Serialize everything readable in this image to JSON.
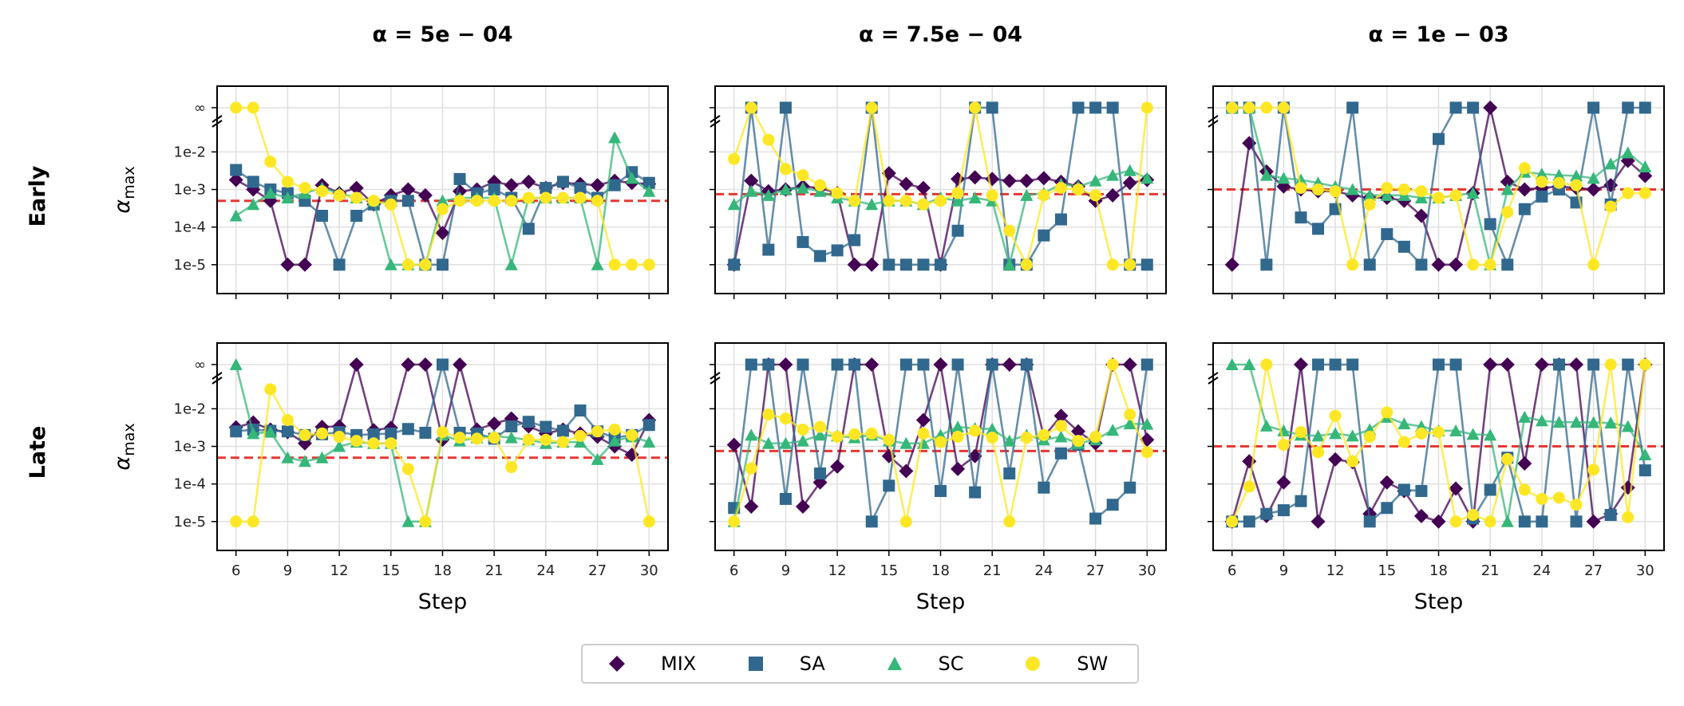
{
  "figure": {
    "row_labels": [
      "Early",
      "Late"
    ],
    "legend": [
      {
        "name": "MIX",
        "color": "#440154",
        "marker": "diamond-icon"
      },
      {
        "name": "SA",
        "color": "#31688e",
        "marker": "square-icon"
      },
      {
        "name": "SC",
        "color": "#35b779",
        "marker": "triangle-icon"
      },
      {
        "name": "SW",
        "color": "#fde725",
        "marker": "circle-icon"
      }
    ]
  },
  "chart_data": [
    {
      "type": "line",
      "row": "Early",
      "title": "α = 5e − 04",
      "threshold": 0.0005,
      "xlabel": "",
      "ylabel": "α_max",
      "x_ticks": [
        6,
        9,
        12,
        15,
        18,
        21,
        24,
        27,
        30
      ],
      "y_ticks": [
        "1e-5",
        "1e-4",
        "1e-3",
        "1e-2",
        "∞"
      ],
      "x": [
        6,
        7,
        8,
        9,
        10,
        11,
        12,
        13,
        14,
        15,
        16,
        17,
        18,
        19,
        20,
        21,
        22,
        23,
        24,
        25,
        26,
        27,
        28,
        29,
        30
      ],
      "series": [
        {
          "name": "MIX",
          "values": [
            "1.8e-3",
            "1e-3",
            "5e-4",
            "1e-5",
            "1e-5",
            "1.3e-3",
            "8e-4",
            "1.1e-3",
            "4e-4",
            "7e-4",
            "1e-3",
            "7e-4",
            "7e-5",
            "9e-4",
            "1e-3",
            "1.6e-3",
            "1.3e-3",
            "1.6e-3",
            "1.1e-3",
            "1.5e-3",
            "1.4e-3",
            "1.3e-3",
            "1.7e-3",
            "1.5e-3",
            "1.4e-3"
          ]
        },
        {
          "name": "SA",
          "values": [
            "3.3e-3",
            "1.6e-3",
            "1e-3",
            "8e-4",
            "5e-4",
            "2e-4",
            "1e-5",
            "2e-4",
            "4e-4",
            "5e-4",
            "5e-4",
            "1e-5",
            "1e-5",
            "1.9e-3",
            "8e-4",
            "1e-3",
            "6e-4",
            "9e-5",
            "1.1e-3",
            "1.6e-3",
            "1.1e-3",
            "6e-4",
            "1.3e-3",
            "2.9e-3",
            "1.5e-3"
          ]
        },
        {
          "name": "SC",
          "values": [
            "2e-4",
            "4e-4",
            "8e-4",
            "6e-4",
            "8e-4",
            "1.1e-3",
            "8e-4",
            "6e-4",
            "5e-4",
            "1e-5",
            "1e-5",
            "1e-5",
            "5e-4",
            "6e-4",
            "6e-4",
            "6e-4",
            "1e-5",
            "6e-4",
            "6e-4",
            "6e-4",
            "6e-4",
            "1e-5",
            "2.4e-2",
            "2e-3",
            "9e-4"
          ]
        },
        {
          "name": "SW",
          "values": [
            "inf",
            "inf",
            "5.5e-3",
            "1.6e-3",
            "1.1e-3",
            "9e-4",
            "7e-4",
            "6e-4",
            "5e-4",
            "4e-4",
            "1e-5",
            "1e-5",
            "3e-4",
            "5e-4",
            "5e-4",
            "5e-4",
            "5e-4",
            "6e-4",
            "6e-4",
            "6e-4",
            "6e-4",
            "5e-4",
            "1e-5",
            "1e-5",
            "1e-5"
          ]
        }
      ]
    },
    {
      "type": "line",
      "row": "Early",
      "title": "α = 7.5e − 04",
      "threshold": 0.00075,
      "xlabel": "",
      "ylabel": "",
      "x_ticks": [
        6,
        9,
        12,
        15,
        18,
        21,
        24,
        27,
        30
      ],
      "x": [
        6,
        7,
        8,
        9,
        10,
        11,
        12,
        13,
        14,
        15,
        16,
        17,
        18,
        19,
        20,
        21,
        22,
        23,
        24,
        25,
        26,
        27,
        28,
        29,
        30
      ],
      "series": [
        {
          "name": "MIX",
          "values": [
            "1e-5",
            "1.7e-3",
            "9e-4",
            "1e-3",
            "1.2e-3",
            "1.1e-3",
            "8e-4",
            "1e-5",
            "1e-5",
            "2.7e-3",
            "1.4e-3",
            "1.1e-3",
            "1e-5",
            "1.9e-3",
            "2.1e-3",
            "1.9e-3",
            "1.7e-3",
            "1.7e-3",
            "2e-3",
            "1.6e-3",
            "1.2e-3",
            "5e-4",
            "7e-4",
            "1.5e-3",
            "1.8e-3"
          ]
        },
        {
          "name": "SA",
          "values": [
            "1e-5",
            "inf",
            "2.5e-5",
            "inf",
            "4e-5",
            "1.7e-5",
            "2.4e-5",
            "4.5e-5",
            "inf",
            "1e-5",
            "1e-5",
            "1e-5",
            "1e-5",
            "8e-5",
            "inf",
            "inf",
            "1e-5",
            "1e-5",
            "6e-5",
            "1.6e-4",
            "inf",
            "inf",
            "inf",
            "1e-5",
            "1e-5"
          ]
        },
        {
          "name": "SC",
          "values": [
            "4e-4",
            "9e-4",
            "7e-4",
            "1e-3",
            "1.1e-3",
            "9e-4",
            "6e-4",
            "5e-4",
            "4e-4",
            "5e-4",
            "5e-4",
            "4e-4",
            "6e-4",
            "5e-4",
            "6e-4",
            "5e-4",
            "1e-5",
            "7e-4",
            "8e-4",
            "1.4e-3",
            "1.2e-3",
            "1.7e-3",
            "2.4e-3",
            "3.2e-3",
            "2e-3"
          ]
        },
        {
          "name": "SW",
          "values": [
            "6.5e-3",
            "inf",
            "2.1e-2",
            "3.5e-3",
            "2.4e-3",
            "1.3e-3",
            "8e-4",
            "5e-4",
            "inf",
            "5e-4",
            "5e-4",
            "4e-4",
            "5e-4",
            "8e-4",
            "inf",
            "7e-4",
            "8e-5",
            "1e-5",
            "7e-4",
            "1.1e-3",
            "1e-3",
            "7e-4",
            "1e-5",
            "1e-5",
            "inf"
          ]
        }
      ]
    },
    {
      "type": "line",
      "row": "Early",
      "title": "α = 1e − 03",
      "threshold": 0.001,
      "xlabel": "",
      "ylabel": "",
      "x_ticks": [
        6,
        9,
        12,
        15,
        18,
        21,
        24,
        27,
        30
      ],
      "x": [
        6,
        7,
        8,
        9,
        10,
        11,
        12,
        13,
        14,
        15,
        16,
        17,
        18,
        19,
        20,
        21,
        22,
        23,
        24,
        25,
        26,
        27,
        28,
        29,
        30
      ],
      "series": [
        {
          "name": "MIX",
          "values": [
            "1e-5",
            "1.7e-2",
            "3e-3",
            "1.2e-3",
            "1e-3",
            "9e-4",
            "9e-4",
            "7e-4",
            "6e-4",
            "6e-4",
            "5e-4",
            "2e-4",
            "1e-5",
            "1e-5",
            "8e-4",
            "inf",
            "1.6e-3",
            "1e-3",
            "1.1e-3",
            "1.2e-3",
            "1.1e-3",
            "1e-3",
            "1.3e-3",
            "5.8e-3",
            "2.3e-3"
          ]
        },
        {
          "name": "SA",
          "values": [
            "inf",
            "inf",
            "1e-5",
            "inf",
            "1.8e-4",
            "9e-5",
            "3e-4",
            "inf",
            "1e-5",
            "6.5e-5",
            "3e-5",
            "1e-5",
            "2.2e-2",
            "inf",
            "inf",
            "1.2e-4",
            "1e-5",
            "3e-4",
            "6.5e-4",
            "1e-3",
            "4.5e-4",
            "inf",
            "4e-4",
            "inf",
            "inf"
          ]
        },
        {
          "name": "SC",
          "values": [
            "inf",
            "inf",
            "2.4e-3",
            "2e-3",
            "1.8e-3",
            "1.5e-3",
            "1.2e-3",
            "1e-3",
            "7e-4",
            "7e-4",
            "7e-4",
            "6e-4",
            "6e-4",
            "7e-4",
            "8e-4",
            "1e-5",
            "1e-3",
            "2.9e-3",
            "2.6e-3",
            "2.4e-3",
            "2.3e-3",
            "2e-3",
            "4.8e-3",
            "9.5e-3",
            "4e-3"
          ]
        },
        {
          "name": "SW",
          "values": [
            "inf",
            "inf",
            "inf",
            "inf",
            "1.1e-3",
            "1e-3",
            "9e-4",
            "1e-5",
            "4e-4",
            "1.1e-3",
            "1e-3",
            "9e-4",
            "6e-4",
            "7e-4",
            "1e-5",
            "1e-5",
            "2.5e-4",
            "3.7e-3",
            "1.6e-3",
            "1.5e-3",
            "1.3e-3",
            "1e-5",
            "3.5e-4",
            "8e-4",
            "8e-4"
          ]
        }
      ]
    },
    {
      "type": "line",
      "row": "Late",
      "title": "",
      "threshold": 0.0005,
      "xlabel": "Step",
      "ylabel": "α_max",
      "x_ticks": [
        6,
        9,
        12,
        15,
        18,
        21,
        24,
        27,
        30
      ],
      "x": [
        6,
        7,
        8,
        9,
        10,
        11,
        12,
        13,
        14,
        15,
        16,
        17,
        18,
        19,
        20,
        21,
        22,
        23,
        24,
        25,
        26,
        27,
        28,
        29,
        30
      ],
      "series": [
        {
          "name": "MIX",
          "values": [
            "3.2e-3",
            "4.3e-3",
            "2.8e-3",
            "2.4e-3",
            "1.2e-3",
            "3.3e-3",
            "3.4e-3",
            "inf",
            "2.7e-3",
            "3.1e-3",
            "inf",
            "inf",
            "1.5e-3",
            "inf",
            "2.8e-3",
            "4e-3",
            "5.5e-3",
            "3.4e-3",
            "2.2e-3",
            "2.8e-3",
            "2.2e-3",
            "1.8e-3",
            "1e-3",
            "6e-4",
            "5e-3"
          ]
        },
        {
          "name": "SA",
          "values": [
            "2.5e-3",
            "2.8e-3",
            "2.6e-3",
            "2.5e-3",
            "2e-3",
            "2.1e-3",
            "2.4e-3",
            "2e-3",
            "2.1e-3",
            "2.2e-3",
            "2.9e-3",
            "2.3e-3",
            "inf",
            "2.3e-3",
            "2.2e-3",
            "1.6e-3",
            "3.4e-3",
            "4.5e-3",
            "3.3e-3",
            "2.6e-3",
            "9e-3",
            "2.5e-3",
            "1.7e-3",
            "2e-3",
            "3.7e-3"
          ]
        },
        {
          "name": "SC",
          "values": [
            "inf",
            "2.2e-3",
            "2.4e-3",
            "5e-4",
            "4e-4",
            "5e-4",
            "1e-3",
            "1.3e-3",
            "1.2e-3",
            "1.2e-3",
            "1e-5",
            "1e-5",
            "2e-3",
            "1.4e-3",
            "1.7e-3",
            "1.9e-3",
            "1.7e-3",
            "1.5e-3",
            "1.2e-3",
            "1.3e-3",
            "1.3e-3",
            "4.5e-4",
            "1.4e-3",
            "1.8e-3",
            "1.3e-3"
          ]
        },
        {
          "name": "SW",
          "values": [
            "1e-5",
            "1e-5",
            "3.3e-2",
            "5e-3",
            "2e-3",
            "2.2e-3",
            "1.8e-3",
            "1.4e-3",
            "1.2e-3",
            "1.2e-3",
            "2.5e-4",
            "1e-5",
            "2.4e-3",
            "1.7e-3",
            "1.6e-3",
            "1.7e-3",
            "2.8e-4",
            "1.5e-3",
            "1.5e-3",
            "1.3e-3",
            "1.9e-3",
            "2.5e-3",
            "2.8e-3",
            "2e-3",
            "1e-5"
          ]
        }
      ]
    },
    {
      "type": "line",
      "row": "Late",
      "title": "",
      "threshold": 0.00075,
      "xlabel": "Step",
      "ylabel": "",
      "x_ticks": [
        6,
        9,
        12,
        15,
        18,
        21,
        24,
        27,
        30
      ],
      "x": [
        6,
        7,
        8,
        9,
        10,
        11,
        12,
        13,
        14,
        15,
        16,
        17,
        18,
        19,
        20,
        21,
        22,
        23,
        24,
        25,
        26,
        27,
        28,
        29,
        30
      ],
      "series": [
        {
          "name": "MIX",
          "values": [
            "1.1e-3",
            "2.5e-5",
            "inf",
            "inf",
            "2.5e-5",
            "1.1e-4",
            "2.9e-4",
            "inf",
            "inf",
            "5.5e-4",
            "2.2e-4",
            "5e-3",
            "inf",
            "2.5e-4",
            "5.5e-4",
            "inf",
            "inf",
            "inf",
            "1.8e-3",
            "6.5e-3",
            "2.5e-3",
            "1.2e-3",
            "inf",
            "inf",
            "1.5e-3"
          ]
        },
        {
          "name": "SA",
          "values": [
            "2.3e-5",
            "inf",
            "inf",
            "4e-5",
            "inf",
            "1.9e-4",
            "inf",
            "inf",
            "1e-5",
            "9e-5",
            "inf",
            "inf",
            "6.5e-5",
            "inf",
            "6e-5",
            "inf",
            "1.9e-4",
            "inf",
            "8e-5",
            "6.5e-4",
            "1.1e-3",
            "1.2e-5",
            "2.8e-5",
            "8e-5",
            "inf"
          ]
        },
        {
          "name": "SC",
          "values": [
            "1e-5",
            "2e-3",
            "1.2e-3",
            "1.2e-3",
            "1.4e-3",
            "2e-3",
            "1.9e-3",
            "1.7e-3",
            "2e-3",
            "1.4e-3",
            "1.2e-3",
            "1.2e-3",
            "2e-3",
            "3.3e-3",
            "3e-3",
            "2.9e-3",
            "1.4e-3",
            "2e-3",
            "1.5e-3",
            "1.8e-3",
            "1.2e-3",
            "1.5e-3",
            "2.7e-3",
            "4e-3",
            "3.9e-3"
          ]
        },
        {
          "name": "SW",
          "values": [
            "1e-5",
            "2.6e-4",
            "7e-3",
            "5.5e-3",
            "2.8e-3",
            "3.3e-3",
            "1.8e-3",
            "2.1e-3",
            "2.2e-3",
            "1.5e-3",
            "1e-5",
            "2.2e-3",
            "1.3e-3",
            "1.8e-3",
            "2.6e-3",
            "1.7e-3",
            "1e-5",
            "1.7e-3",
            "2e-3",
            "3.5e-3",
            "1.4e-3",
            "1.8e-3",
            "inf",
            "7e-3",
            "7e-4"
          ]
        }
      ]
    },
    {
      "type": "line",
      "row": "Late",
      "title": "",
      "threshold": 0.001,
      "xlabel": "Step",
      "ylabel": "",
      "x_ticks": [
        6,
        9,
        12,
        15,
        18,
        21,
        24,
        27,
        30
      ],
      "x": [
        6,
        7,
        8,
        9,
        10,
        11,
        12,
        13,
        14,
        15,
        16,
        17,
        18,
        19,
        20,
        21,
        22,
        23,
        24,
        25,
        26,
        27,
        28,
        29,
        30
      ],
      "series": [
        {
          "name": "MIX",
          "values": [
            "1e-5",
            "4e-4",
            "1.4e-5",
            "1.1e-4",
            "inf",
            "1e-5",
            "4.5e-4",
            "3.8e-4",
            "1.6e-5",
            "1.1e-4",
            "6.5e-5",
            "1.4e-5",
            "1e-5",
            "7.5e-5",
            "1e-5",
            "inf",
            "inf",
            "3.5e-4",
            "inf",
            "inf",
            "inf",
            "1e-5",
            "1.6e-5",
            "8e-5",
            "inf"
          ]
        },
        {
          "name": "SA",
          "values": [
            "1e-5",
            "1e-5",
            "1.6e-5",
            "2e-5",
            "3.5e-5",
            "inf",
            "inf",
            "inf",
            "1e-5",
            "2.3e-5",
            "7e-5",
            "6.5e-5",
            "inf",
            "inf",
            "1.2e-5",
            "7e-5",
            "5e-4",
            "1e-5",
            "1e-5",
            "inf",
            "1e-5",
            "inf",
            "1.5e-5",
            "inf",
            "2.3e-4"
          ]
        },
        {
          "name": "SC",
          "values": [
            "inf",
            "inf",
            "3.5e-3",
            "2.6e-3",
            "2e-3",
            "1.9e-3",
            "2.2e-3",
            "1.9e-3",
            "2.8e-3",
            "6e-3",
            "4e-3",
            "3.4e-3",
            "2.6e-3",
            "2.6e-3",
            "2.1e-3",
            "2e-3",
            "1e-5",
            "6e-3",
            "4.8e-3",
            "4.4e-3",
            "4.4e-3",
            "4.3e-3",
            "4.2e-3",
            "3.4e-3",
            "6e-4"
          ]
        },
        {
          "name": "SW",
          "values": [
            "1e-5",
            "8.5e-5",
            "inf",
            "1.1e-3",
            "2.4e-3",
            "7e-4",
            "6.5e-3",
            "4e-4",
            "1.8e-3",
            "8e-3",
            "1.3e-3",
            "2.2e-3",
            "2.4e-3",
            "1e-5",
            "1.5e-5",
            "1e-5",
            "4.6e-4",
            "7e-5",
            "4e-5",
            "4.3e-5",
            "2.8e-5",
            "2.4e-4",
            "inf",
            "1.3e-5",
            "inf"
          ]
        }
      ]
    }
  ]
}
